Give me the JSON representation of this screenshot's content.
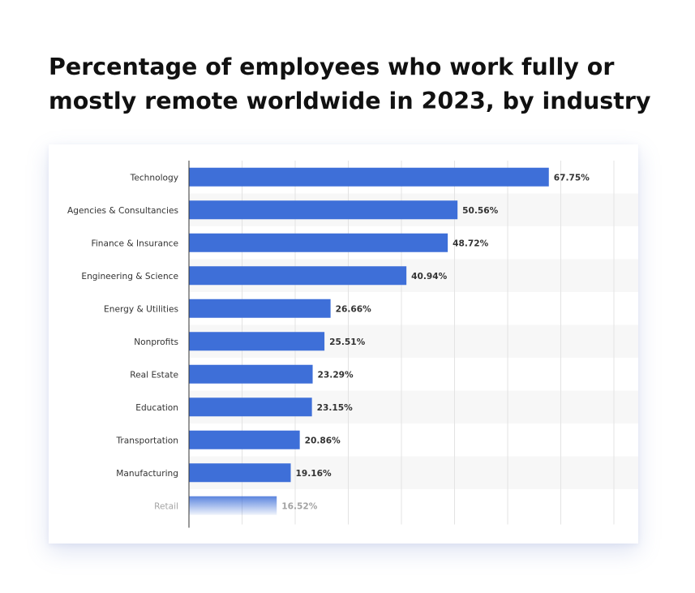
{
  "title": {
    "line1": "Percentage of employees who work fully or",
    "line2": "mostly remote worldwide in 2023, by industry"
  },
  "colors": {
    "bar": "#3e6fd8",
    "band": "#f7f7f7",
    "grid": "#e3e3e3",
    "axis": "#333333"
  },
  "chart_data": {
    "type": "bar",
    "orientation": "horizontal",
    "title": "Percentage of employees who work fully or mostly remote worldwide in 2023, by industry",
    "categories": [
      "Technology",
      "Agencies & Consultancies",
      "Finance & Insurance",
      "Engineering & Science",
      "Energy & Utilities",
      "Nonprofits",
      "Real Estate",
      "Education",
      "Transportation",
      "Manufacturing",
      "Retail"
    ],
    "values": [
      67.75,
      50.56,
      48.72,
      40.94,
      26.66,
      25.51,
      23.29,
      23.15,
      20.86,
      19.16,
      16.52
    ],
    "value_labels": [
      "67.75%",
      "50.56%",
      "48.72%",
      "40.94%",
      "26.66%",
      "25.51%",
      "23.29%",
      "23.15%",
      "20.86%",
      "19.16%",
      "16.52%"
    ],
    "xlim": [
      0,
      80
    ],
    "grid": true,
    "alternating_row_bands": true,
    "last_row_faded": true
  }
}
